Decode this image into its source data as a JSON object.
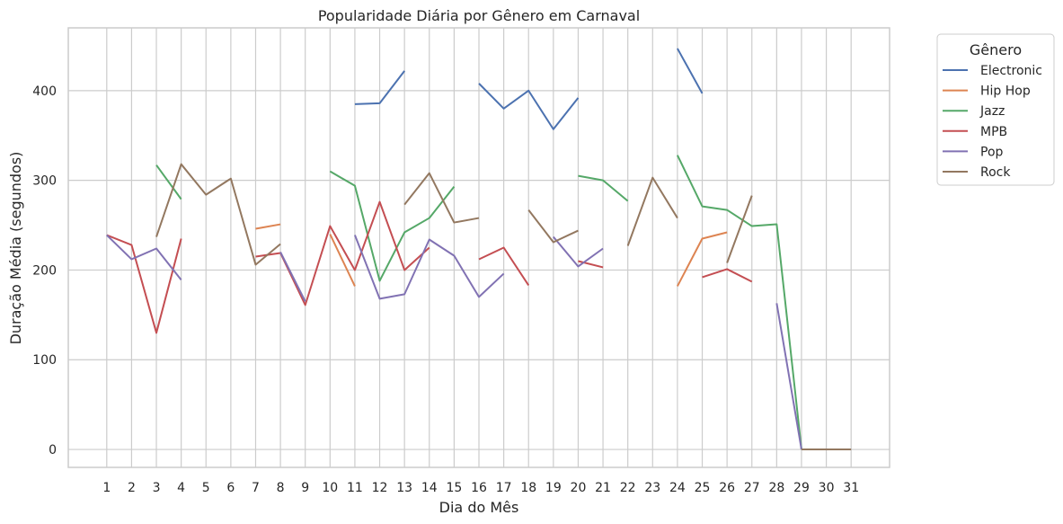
{
  "chart_data": {
    "type": "line",
    "title": "Popularidade Diária por Gênero em Carnaval",
    "xlabel": "Dia do Mês",
    "ylabel": "Duração Média (segundos)",
    "x": [
      1,
      2,
      3,
      4,
      5,
      6,
      7,
      8,
      9,
      10,
      11,
      12,
      13,
      14,
      15,
      16,
      17,
      18,
      19,
      20,
      21,
      22,
      23,
      24,
      25,
      26,
      27,
      28,
      29,
      30,
      31
    ],
    "xlim": [
      -0.55,
      32.55
    ],
    "ylim": [
      -20,
      470
    ],
    "yticks": [
      0,
      100,
      200,
      300,
      400
    ],
    "grid": true,
    "legend": {
      "title": "Gênero",
      "placement": "outside-top-right"
    },
    "series": [
      {
        "name": "Electronic",
        "color": "#4c72b0",
        "values": [
          null,
          null,
          null,
          null,
          null,
          null,
          null,
          null,
          null,
          null,
          385,
          386,
          422,
          null,
          null,
          408,
          380,
          400,
          357,
          392,
          null,
          null,
          null,
          447,
          397,
          null,
          null,
          null,
          null,
          null,
          null
        ]
      },
      {
        "name": "Hip Hop",
        "color": "#dd8452",
        "values": [
          null,
          null,
          null,
          null,
          null,
          null,
          246,
          251,
          null,
          240,
          182,
          null,
          null,
          null,
          null,
          null,
          null,
          null,
          null,
          null,
          null,
          null,
          null,
          182,
          235,
          242,
          null,
          null,
          null,
          null,
          null
        ]
      },
      {
        "name": "Jazz",
        "color": "#55a868",
        "values": [
          null,
          null,
          317,
          279,
          null,
          null,
          null,
          null,
          null,
          310,
          294,
          188,
          242,
          258,
          293,
          null,
          null,
          null,
          null,
          305,
          300,
          277,
          null,
          328,
          271,
          267,
          249,
          251,
          0,
          null,
          null
        ]
      },
      {
        "name": "MPB",
        "color": "#c44e52",
        "values": [
          239,
          228,
          130,
          235,
          null,
          null,
          215,
          219,
          161,
          249,
          200,
          276,
          200,
          225,
          null,
          212,
          225,
          183,
          null,
          210,
          203,
          null,
          null,
          null,
          192,
          201,
          187,
          null,
          null,
          null,
          null
        ]
      },
      {
        "name": "Pop",
        "color": "#8172b3",
        "values": [
          239,
          212,
          224,
          189,
          null,
          null,
          null,
          220,
          165,
          null,
          239,
          168,
          173,
          234,
          216,
          170,
          196,
          null,
          237,
          204,
          224,
          null,
          null,
          null,
          null,
          null,
          null,
          163,
          0,
          null,
          null
        ]
      },
      {
        "name": "Rock",
        "color": "#937860",
        "values": [
          null,
          null,
          237,
          318,
          284,
          302,
          206,
          229,
          null,
          null,
          null,
          null,
          273,
          308,
          253,
          258,
          null,
          267,
          231,
          244,
          null,
          227,
          303,
          258,
          null,
          208,
          283,
          null,
          0,
          0,
          0
        ]
      }
    ]
  }
}
